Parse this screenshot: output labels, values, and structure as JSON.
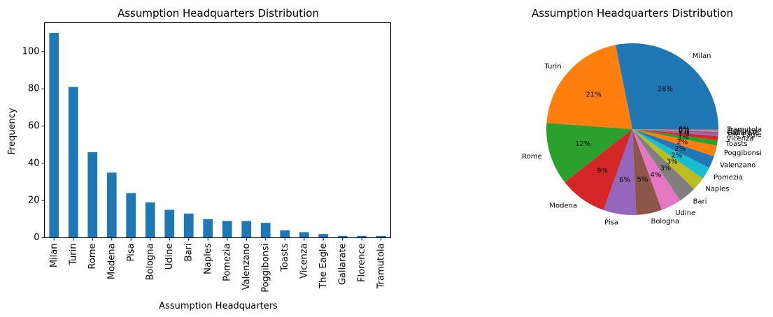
{
  "chart_data": [
    {
      "type": "bar",
      "title": "Assumption Headquarters Distribution",
      "xlabel": "Assumption Headquarters",
      "ylabel": "Frequency",
      "categories": [
        "Milan",
        "Turin",
        "Rome",
        "Modena",
        "Pisa",
        "Bologna",
        "Udine",
        "Bari",
        "Naples",
        "Pomezia",
        "Valenzano",
        "Poggibonsi",
        "Toasts",
        "Vicenza",
        "The Eagle",
        "Gallarate",
        "Florence",
        "Tramutola"
      ],
      "values": [
        110,
        81,
        46,
        35,
        24,
        19,
        15,
        13,
        10,
        9,
        9,
        8,
        4,
        3,
        2,
        1,
        1,
        1
      ],
      "ylim": [
        0,
        115.5
      ],
      "yticks": [
        0,
        20,
        40,
        60,
        80,
        100
      ],
      "color": "#1f77b4",
      "grid": false
    },
    {
      "type": "pie",
      "title": "Assumption Headquarters Distribution",
      "labels": [
        "Milan",
        "Turin",
        "Rome",
        "Modena",
        "Pisa",
        "Bologna",
        "Udine",
        "Bari",
        "Naples",
        "Pomezia",
        "Valenzano",
        "Poggibonsi",
        "Toasts",
        "Vicenza",
        "The Eagle",
        "Gallarate",
        "Florence",
        "Tramutola"
      ],
      "values": [
        110,
        81,
        46,
        35,
        24,
        19,
        15,
        13,
        10,
        9,
        9,
        8,
        4,
        3,
        2,
        1,
        1,
        1
      ],
      "colors": [
        "#1f77b4",
        "#ff7f0e",
        "#2ca02c",
        "#d62728",
        "#9467bd",
        "#8c564b",
        "#e377c2",
        "#7f7f7f",
        "#bcbd22",
        "#17becf",
        "#1f77b4",
        "#ff7f0e",
        "#2ca02c",
        "#d62728",
        "#9467bd",
        "#8c564b",
        "#e377c2",
        "#7f7f7f"
      ]
    }
  ]
}
